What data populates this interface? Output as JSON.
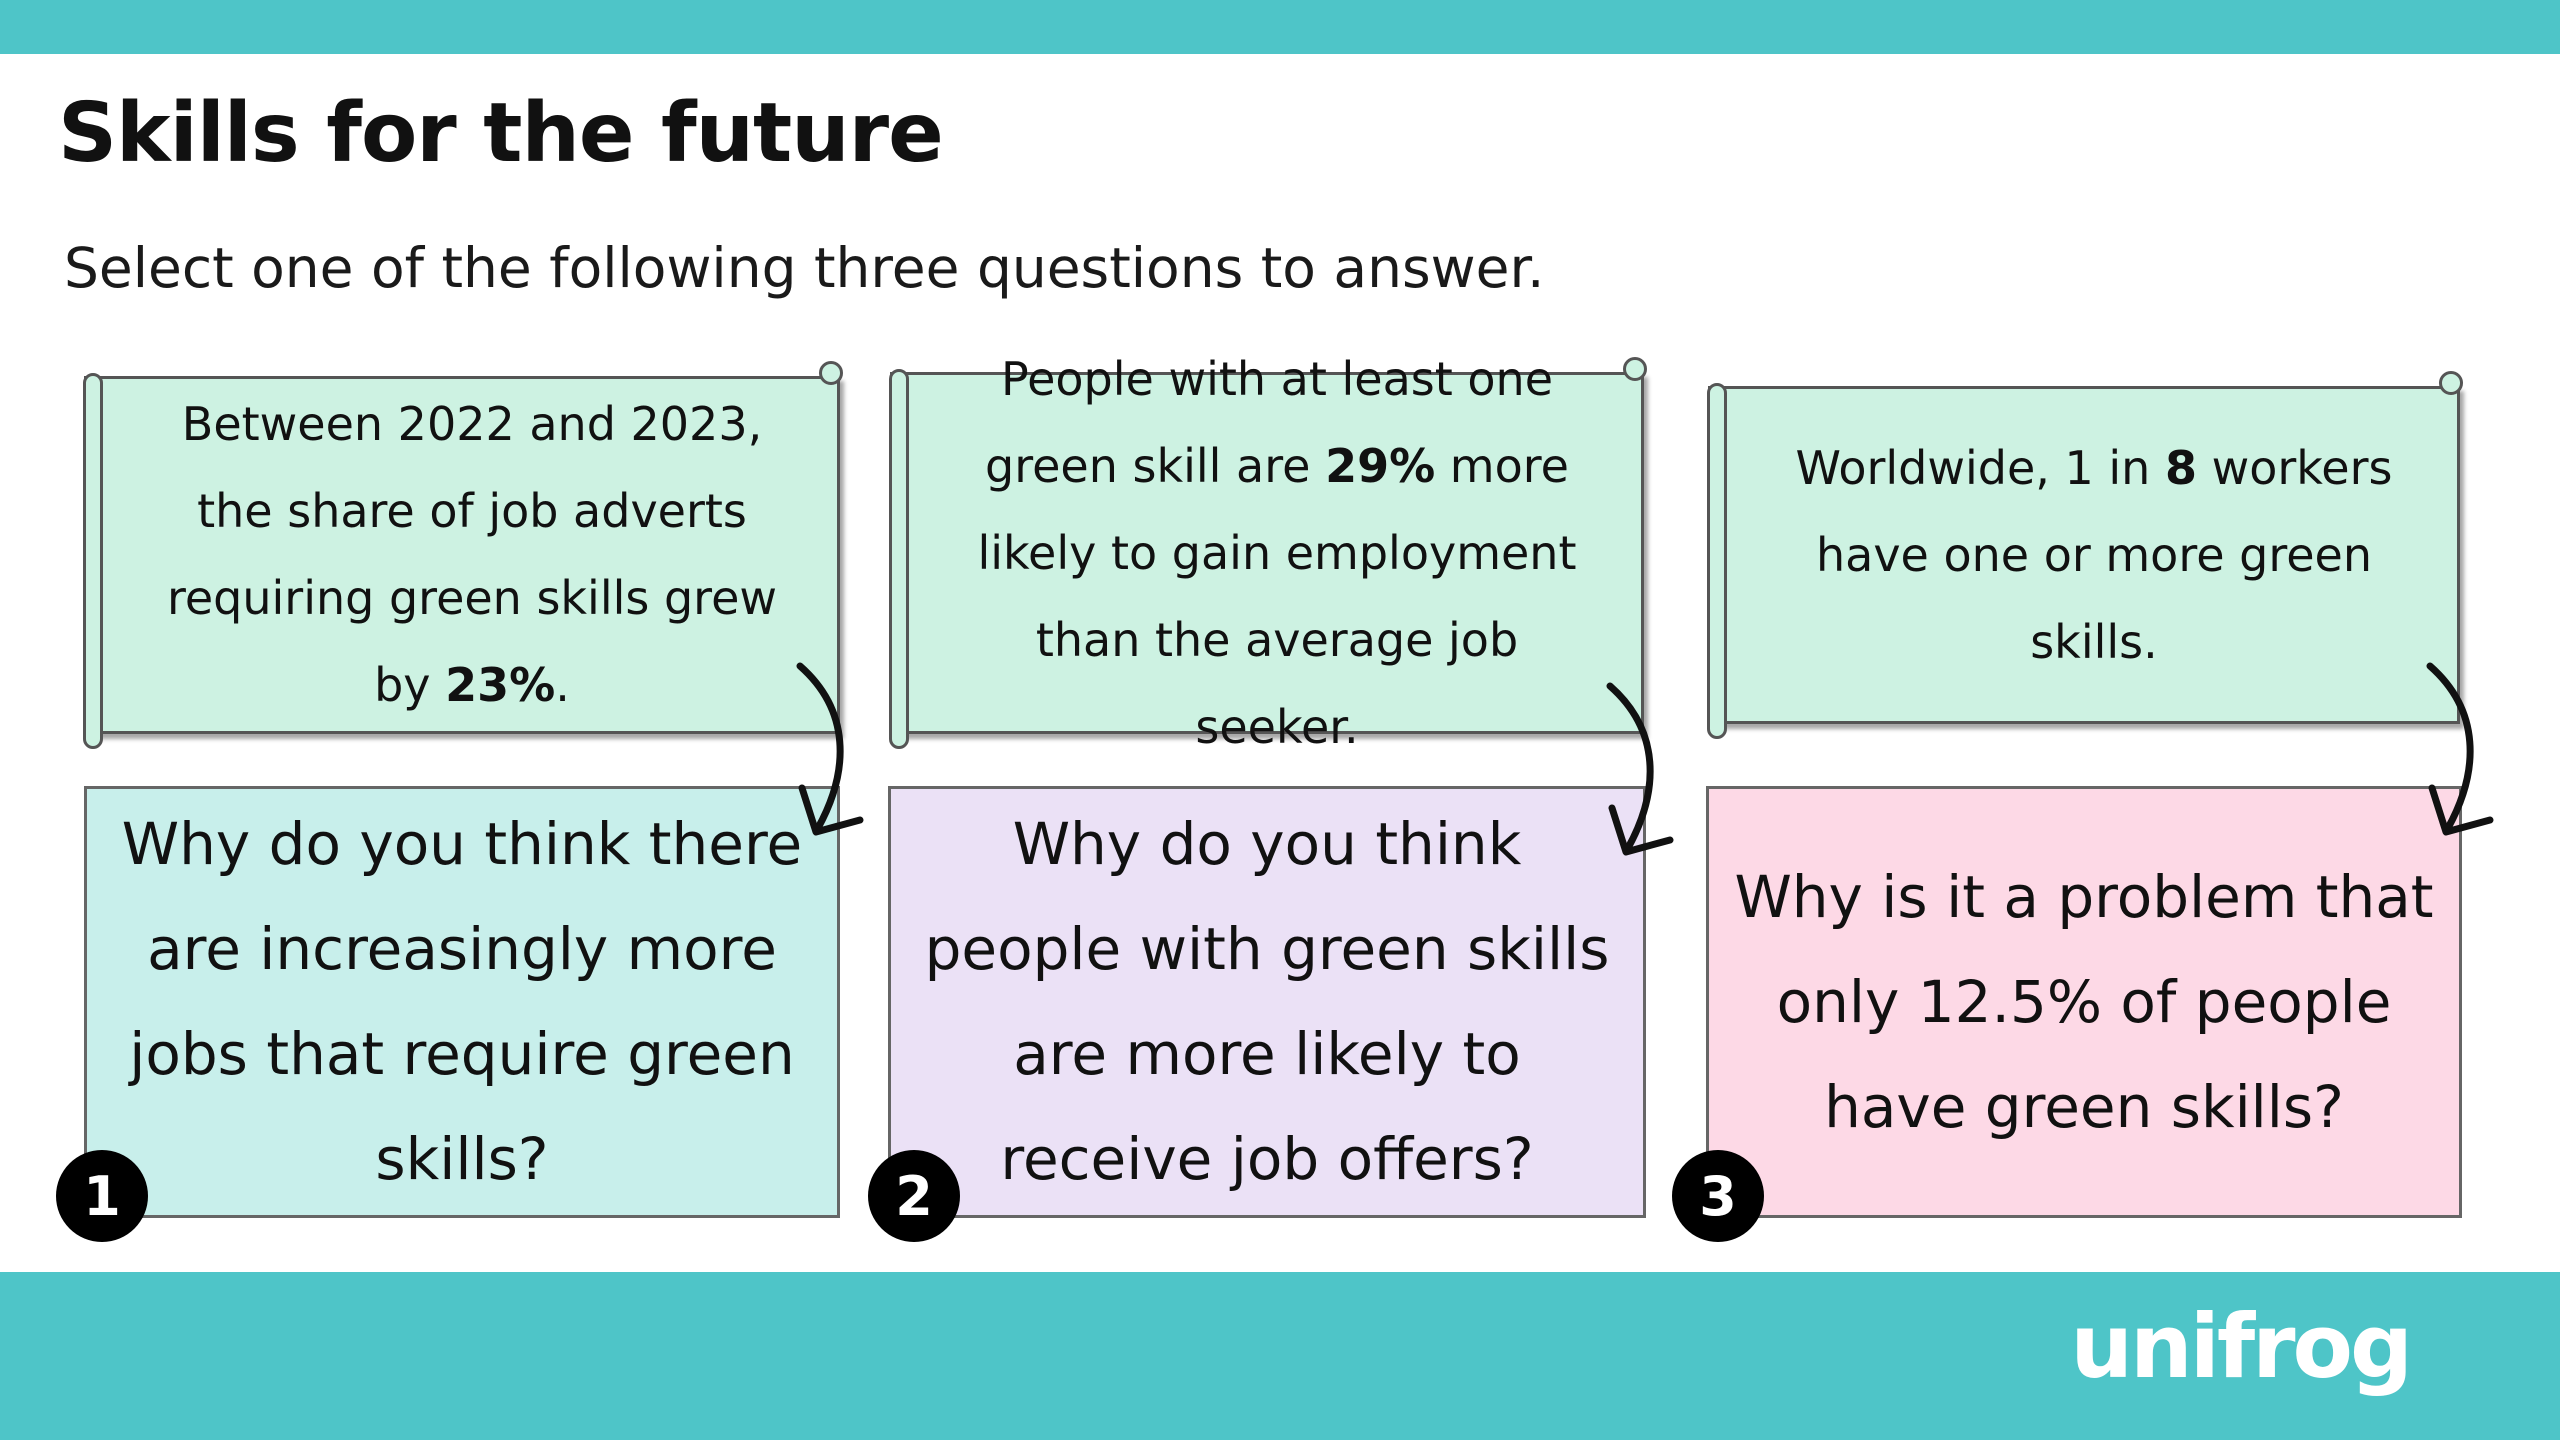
{
  "header": {
    "title": "Skills for the future",
    "subtitle": "Select one of the following three questions to answer."
  },
  "cards": [
    {
      "number": "1",
      "fact_before": "Between 2022 and 2023, the share of job adverts requiring green skills grew by ",
      "fact_bold": "23%",
      "fact_after": ".",
      "question": "Why do you think there are increasingly more jobs that require green skills?"
    },
    {
      "number": "2",
      "fact_before": "People with at least one green skill are ",
      "fact_bold": "29%",
      "fact_after": " more likely to gain employment than the average job seeker.",
      "question": "Why do you think people with green skills are more likely to receive job offers?"
    },
    {
      "number": "3",
      "fact_before": "Worldwide, 1 in ",
      "fact_bold": "8",
      "fact_after": " workers have one or more green skills.",
      "question": "Why is it a problem that only 12.5% of people have green skills?"
    }
  ],
  "footer": {
    "logo": "unifrog"
  },
  "colors": {
    "bar": "#4ec5c8",
    "scroll": "#cdf2e2",
    "q1": "#c8efeb",
    "q2": "#ebe1f6",
    "q3": "#fdd9e6"
  }
}
